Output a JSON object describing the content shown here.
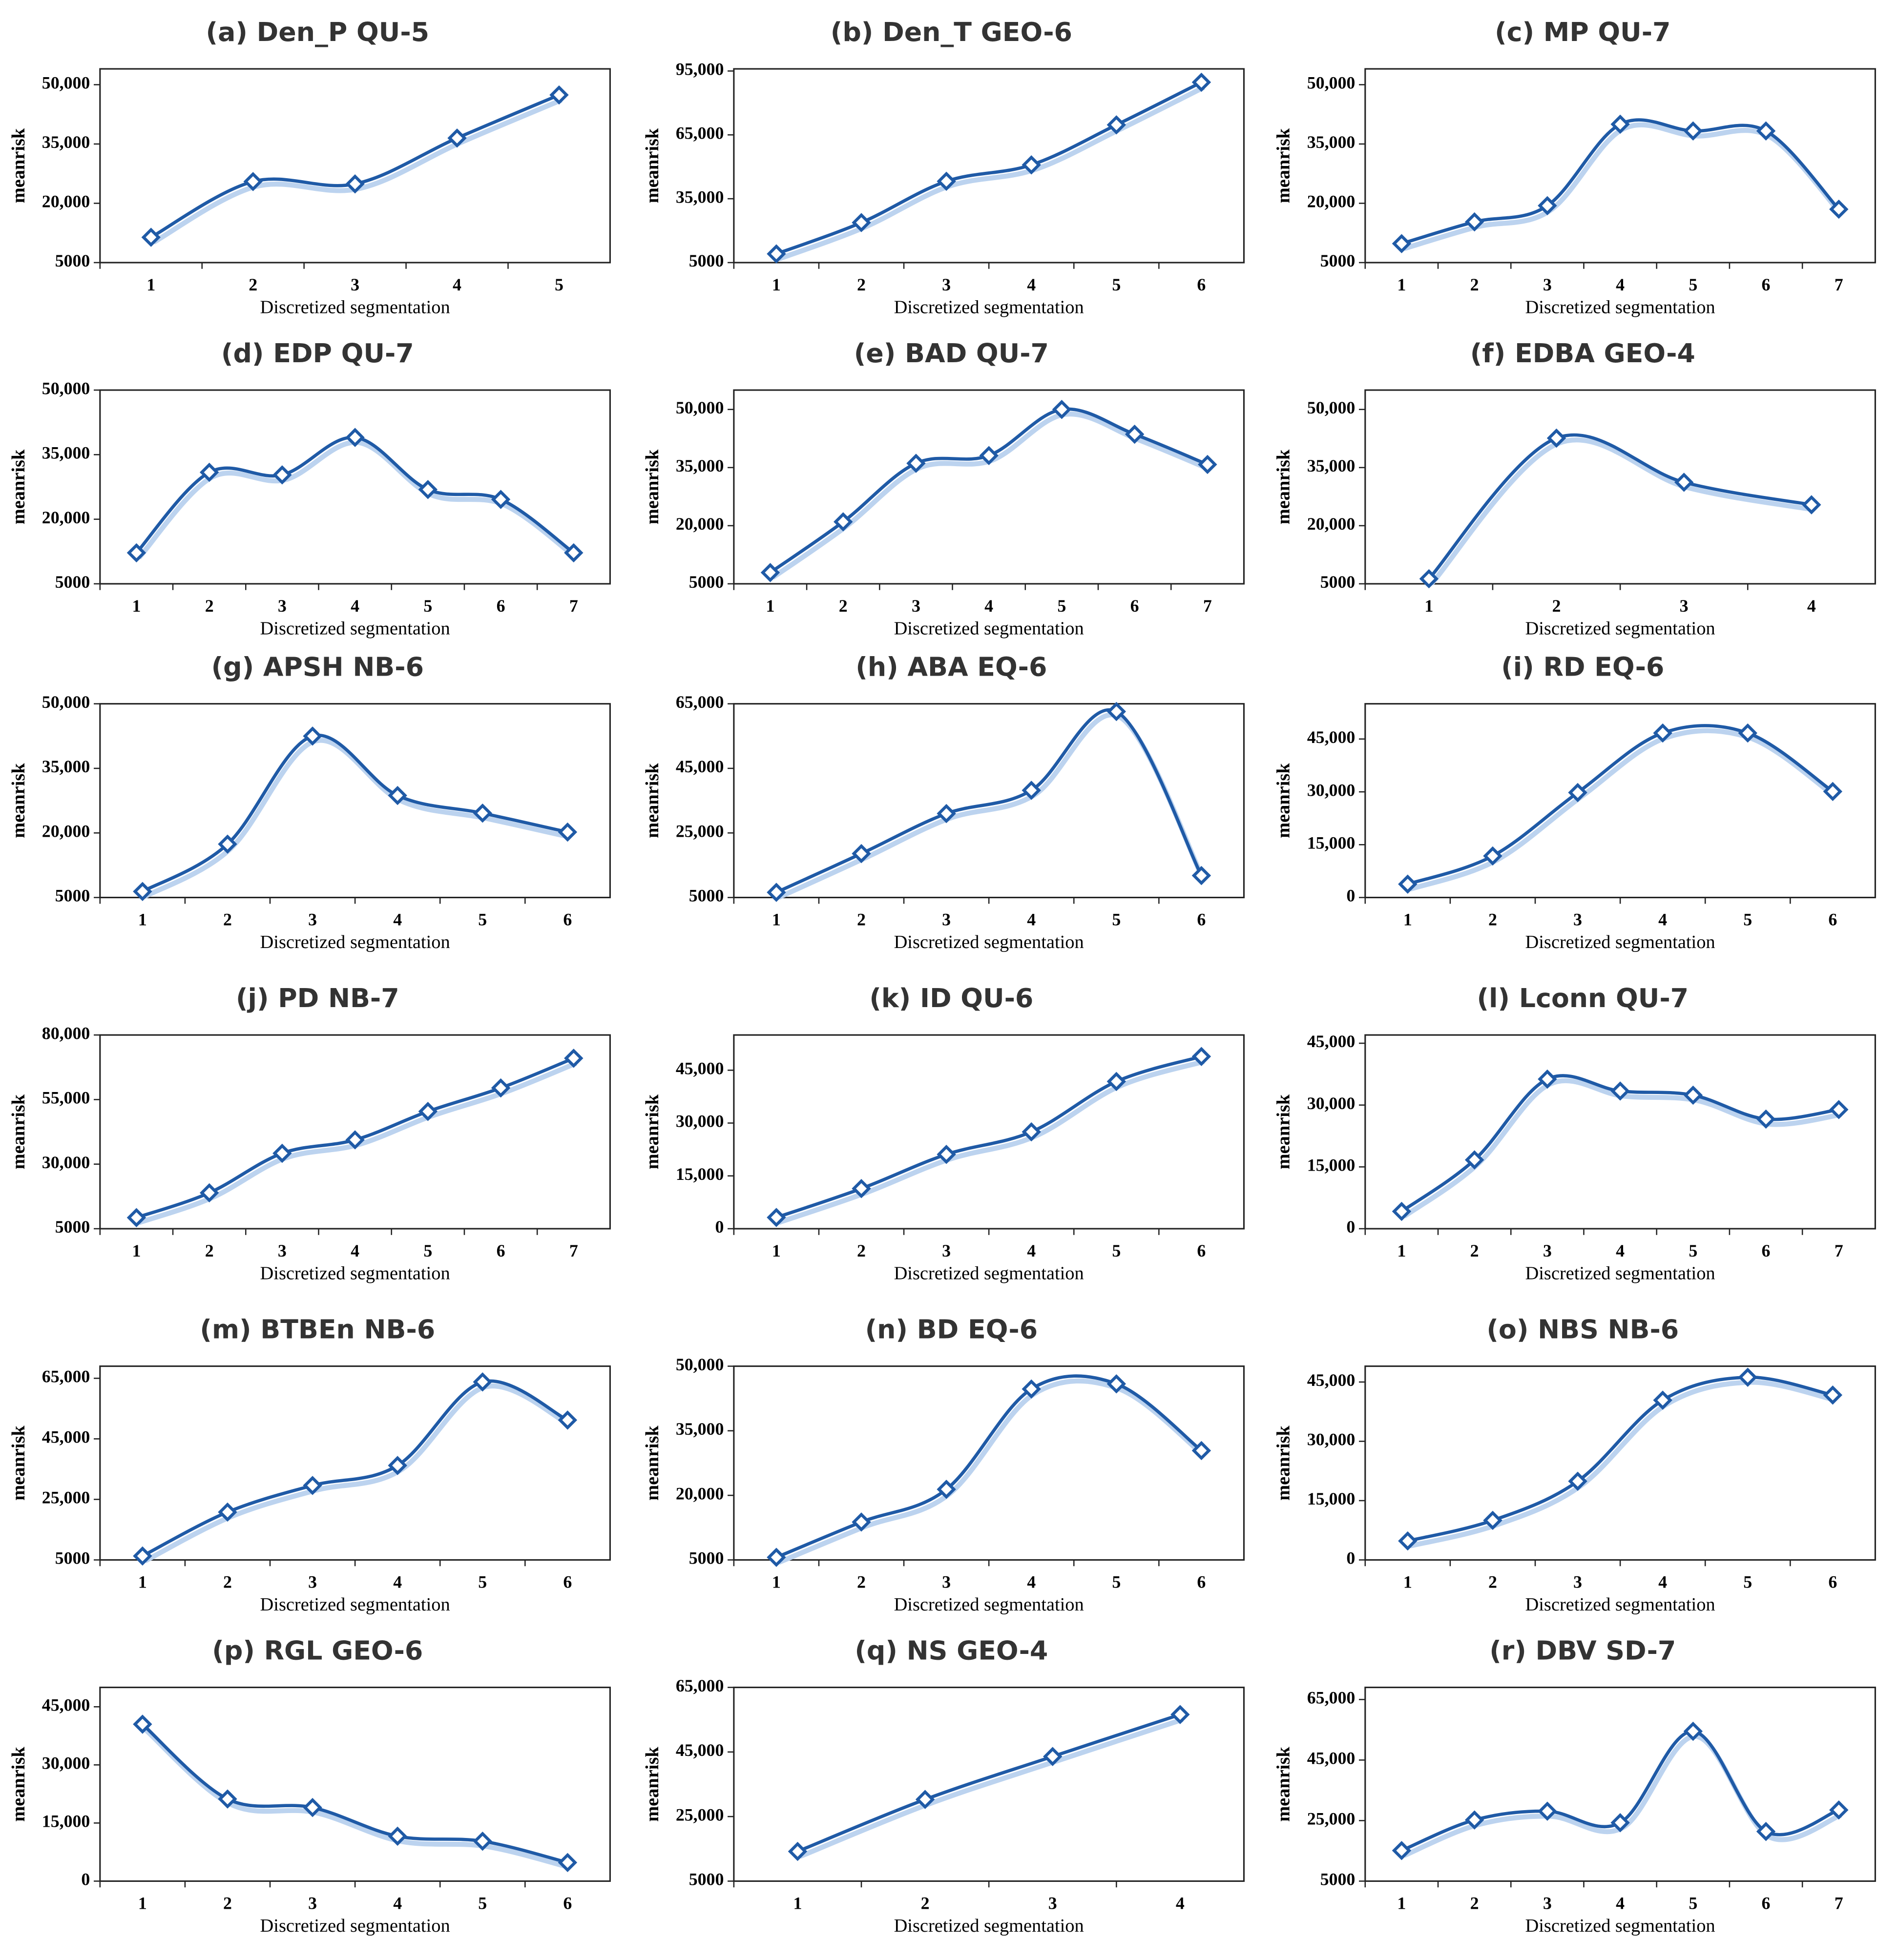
{
  "chart_data": [
    {
      "type": "line",
      "title": "(a) Den_P QU-5",
      "x_label": "Discretized segmentation",
      "y_label": "meanrisk",
      "categories": [
        "1",
        "2",
        "3",
        "4",
        "5"
      ],
      "values": [
        11400,
        25500,
        24900,
        36500,
        47400
      ],
      "color": "#1f5aa6",
      "ylim": [
        5000,
        54000
      ],
      "yticks": [
        5000,
        {
          "value": 20000,
          "label": "20,000"
        },
        {
          "value": 35000,
          "label": "35,000"
        },
        {
          "value": 50000,
          "label": "50,000"
        }
      ]
    },
    {
      "type": "line",
      "title": "(b) Den_T GEO-6",
      "x_label": "Discretized segmentation",
      "y_label": "meanrisk",
      "categories": [
        "1",
        "2",
        "3",
        "4",
        "5",
        "6"
      ],
      "values": [
        9100,
        23800,
        43200,
        50900,
        69700,
        89700
      ],
      "color": "#1f5aa6",
      "ylim": [
        5000,
        96000
      ],
      "yticks": [
        5000,
        {
          "value": 35000,
          "label": "35,000"
        },
        {
          "value": 65000,
          "label": "65,000"
        },
        {
          "value": 95000,
          "label": "95,000"
        }
      ]
    },
    {
      "type": "line",
      "title": "(c) MP QU-7",
      "x_label": "Discretized segmentation",
      "y_label": "meanrisk",
      "categories": [
        "1",
        "2",
        "3",
        "4",
        "5",
        "6",
        "7"
      ],
      "values": [
        9800,
        15300,
        19400,
        40000,
        38300,
        38300,
        18500
      ],
      "color": "#1f5aa6",
      "ylim": [
        5000,
        54000
      ],
      "yticks": [
        5000,
        {
          "value": 20000,
          "label": "20,000"
        },
        {
          "value": 35000,
          "label": "35,000"
        },
        {
          "value": 50000,
          "label": "50,000"
        }
      ]
    },
    {
      "type": "line",
      "title": "(d) EDP QU-7",
      "x_label": "Discretized segmentation",
      "y_label": "meanrisk",
      "categories": [
        "1",
        "2",
        "3",
        "4",
        "5",
        "6",
        "7"
      ],
      "values": [
        12200,
        30900,
        30300,
        39000,
        26900,
        24600,
        12200
      ],
      "color": "#1f5aa6",
      "ylim": [
        5000,
        50000
      ],
      "yticks": [
        5000,
        {
          "value": 20000,
          "label": "20,000"
        },
        {
          "value": 35000,
          "label": "35,000"
        },
        {
          "value": 50000,
          "label": "50,000"
        }
      ]
    },
    {
      "type": "line",
      "title": "(e) BAD QU-7",
      "x_label": "Discretized segmentation",
      "y_label": "meanrisk",
      "categories": [
        "1",
        "2",
        "3",
        "4",
        "5",
        "6",
        "7"
      ],
      "values": [
        7900,
        21000,
        36100,
        38100,
        50000,
        43600,
        35800
      ],
      "color": "#1f5aa6",
      "ylim": [
        5000,
        55000
      ],
      "yticks": [
        5000,
        {
          "value": 20000,
          "label": "20,000"
        },
        {
          "value": 35000,
          "label": "35,000"
        },
        {
          "value": 50000,
          "label": "50,000"
        }
      ]
    },
    {
      "type": "line",
      "title": "(f) EDBA GEO-4",
      "x_label": "Discretized segmentation",
      "y_label": "meanrisk",
      "categories": [
        "1",
        "2",
        "3",
        "4"
      ],
      "values": [
        6300,
        42600,
        31200,
        25400
      ],
      "color": "#1f5aa6",
      "ylim": [
        5000,
        55000
      ],
      "yticks": [
        5000,
        {
          "value": 20000,
          "label": "20,000"
        },
        {
          "value": 35000,
          "label": "35,000"
        },
        {
          "value": 50000,
          "label": "50,000"
        }
      ]
    },
    {
      "type": "line",
      "title": "(g)  APSH NB-6",
      "x_label": "Discretized segmentation",
      "y_label": "meanrisk",
      "categories": [
        "1",
        "2",
        "3",
        "4",
        "5",
        "6"
      ],
      "values": [
        6400,
        17400,
        42500,
        28700,
        24600,
        20200
      ],
      "color": "#1f5aa6",
      "ylim": [
        5000,
        50000
      ],
      "yticks": [
        5000,
        {
          "value": 20000,
          "label": "20,000"
        },
        {
          "value": 35000,
          "label": "35,000"
        },
        {
          "value": 50000,
          "label": "50,000"
        }
      ]
    },
    {
      "type": "line",
      "title": "(h) ABA EQ-6",
      "x_label": "Discretized segmentation",
      "y_label": "meanrisk",
      "categories": [
        "1",
        "2",
        "3",
        "4",
        "5",
        "6"
      ],
      "values": [
        6600,
        18600,
        31000,
        38200,
        62600,
        11800
      ],
      "color": "#1f5aa6",
      "ylim": [
        5000,
        65000
      ],
      "yticks": [
        5000,
        {
          "value": 25000,
          "label": "25,000"
        },
        {
          "value": 45000,
          "label": "45,000"
        },
        {
          "value": 65000,
          "label": "65,000"
        }
      ]
    },
    {
      "type": "line",
      "title": "(i) RD EQ-6",
      "x_label": "Discretized segmentation",
      "y_label": "meanrisk",
      "categories": [
        "1",
        "2",
        "3",
        "4",
        "5",
        "6"
      ],
      "values": [
        3800,
        11800,
        29800,
        46700,
        46700,
        30100
      ],
      "color": "#1f5aa6",
      "ylim": [
        0,
        55000
      ],
      "yticks": [
        0,
        {
          "value": 15000,
          "label": "15,000"
        },
        {
          "value": 30000,
          "label": "30,000"
        },
        {
          "value": 45000,
          "label": "45,000"
        }
      ]
    },
    {
      "type": "line",
      "title": "(j) PD NB-7",
      "x_label": "Discretized segmentation",
      "y_label": "meanrisk",
      "categories": [
        "1",
        "2",
        "3",
        "4",
        "5",
        "6",
        "7"
      ],
      "values": [
        9300,
        18900,
        34200,
        39400,
        50400,
        59500,
        71000
      ],
      "color": "#1f5aa6",
      "ylim": [
        5000,
        80000
      ],
      "yticks": [
        5000,
        {
          "value": 30000,
          "label": "30,000"
        },
        {
          "value": 55000,
          "label": "55,000"
        },
        {
          "value": 80000,
          "label": "80,000"
        }
      ]
    },
    {
      "type": "line",
      "title": "(k) ID QU-6",
      "x_label": "Discretized segmentation",
      "y_label": "meanrisk",
      "categories": [
        "1",
        "2",
        "3",
        "4",
        "5",
        "6"
      ],
      "values": [
        3200,
        11400,
        21100,
        27500,
        41800,
        48900
      ],
      "color": "#1f5aa6",
      "ylim": [
        0,
        55000
      ],
      "yticks": [
        0,
        {
          "value": 15000,
          "label": "15,000"
        },
        {
          "value": 30000,
          "label": "30,000"
        },
        {
          "value": 45000,
          "label": "45,000"
        }
      ]
    },
    {
      "type": "line",
      "title": "(l) Lconn  QU-7",
      "x_label": "Discretized segmentation",
      "y_label": "meanrisk",
      "categories": [
        "1",
        "2",
        "3",
        "4",
        "5",
        "6",
        "7"
      ],
      "values": [
        4200,
        16700,
        36300,
        33400,
        32400,
        26600,
        28900
      ],
      "color": "#1f5aa6",
      "ylim": [
        0,
        47000
      ],
      "yticks": [
        0,
        {
          "value": 15000,
          "label": "15,000"
        },
        {
          "value": 30000,
          "label": "30,000"
        },
        {
          "value": 45000,
          "label": "45,000"
        }
      ]
    },
    {
      "type": "line",
      "title": "(m) BTBEn NB-6",
      "x_label": "Discretized segmentation",
      "y_label": "meanrisk",
      "categories": [
        "1",
        "2",
        "3",
        "4",
        "5",
        "6"
      ],
      "values": [
        6300,
        20800,
        29600,
        36200,
        63800,
        51200
      ],
      "color": "#1f5aa6",
      "ylim": [
        5000,
        69000
      ],
      "yticks": [
        5000,
        {
          "value": 25000,
          "label": "25,000"
        },
        {
          "value": 45000,
          "label": "45,000"
        },
        {
          "value": 65000,
          "label": "65,000"
        }
      ]
    },
    {
      "type": "line",
      "title": "(n) BD EQ-6",
      "x_label": "Discretized segmentation",
      "y_label": "meanrisk",
      "categories": [
        "1",
        "2",
        "3",
        "4",
        "5",
        "6"
      ],
      "values": [
        5600,
        13800,
        21400,
        44700,
        45900,
        30400
      ],
      "color": "#1f5aa6",
      "ylim": [
        5000,
        50000
      ],
      "yticks": [
        5000,
        {
          "value": 20000,
          "label": "20,000"
        },
        {
          "value": 35000,
          "label": "35,000"
        },
        {
          "value": 50000,
          "label": "50,000"
        }
      ]
    },
    {
      "type": "line",
      "title": "(o) NBS NB-6",
      "x_label": "Discretized segmentation",
      "y_label": "meanrisk",
      "categories": [
        "1",
        "2",
        "3",
        "4",
        "5",
        "6"
      ],
      "values": [
        4800,
        10000,
        19900,
        40400,
        46200,
        41700
      ],
      "color": "#1f5aa6",
      "ylim": [
        0,
        49000
      ],
      "yticks": [
        0,
        {
          "value": 15000,
          "label": "15,000"
        },
        {
          "value": 30000,
          "label": "30,000"
        },
        {
          "value": 45000,
          "label": "45,000"
        }
      ]
    },
    {
      "type": "line",
      "title": "(p) RGL GEO-6",
      "x_label": "Discretized segmentation",
      "y_label": "meanrisk",
      "categories": [
        "1",
        "2",
        "3",
        "4",
        "5",
        "6"
      ],
      "values": [
        40500,
        21200,
        19000,
        11600,
        10300,
        4800
      ],
      "color": "#1f5aa6",
      "ylim": [
        0,
        50000
      ],
      "yticks": [
        0,
        {
          "value": 15000,
          "label": "15,000"
        },
        {
          "value": 30000,
          "label": "30,000"
        },
        {
          "value": 45000,
          "label": "45,000"
        }
      ]
    },
    {
      "type": "line",
      "title": "(q) NS GEO-4",
      "x_label": "Discretized segmentation",
      "y_label": "meanrisk",
      "categories": [
        "1",
        "2",
        "3",
        "4"
      ],
      "values": [
        14200,
        30300,
        43600,
        56600
      ],
      "color": "#1f5aa6",
      "ylim": [
        5000,
        65000
      ],
      "yticks": [
        5000,
        {
          "value": 25000,
          "label": "25,000"
        },
        {
          "value": 45000,
          "label": "45,000"
        },
        {
          "value": 65000,
          "label": "65,000"
        }
      ]
    },
    {
      "type": "line",
      "title": "(r) DBV SD-7",
      "x_label": "Discretized segmentation",
      "y_label": "meanrisk",
      "categories": [
        "1",
        "2",
        "3",
        "4",
        "5",
        "6",
        "7"
      ],
      "values": [
        15100,
        25200,
        28100,
        24300,
        54500,
        21400,
        28500
      ],
      "color": "#1f5aa6",
      "ylim": [
        5000,
        69000
      ],
      "yticks": [
        5000,
        {
          "value": 25000,
          "label": "25,000"
        },
        {
          "value": 45000,
          "label": "45,000"
        },
        {
          "value": 65000,
          "label": "65,000"
        }
      ]
    }
  ]
}
